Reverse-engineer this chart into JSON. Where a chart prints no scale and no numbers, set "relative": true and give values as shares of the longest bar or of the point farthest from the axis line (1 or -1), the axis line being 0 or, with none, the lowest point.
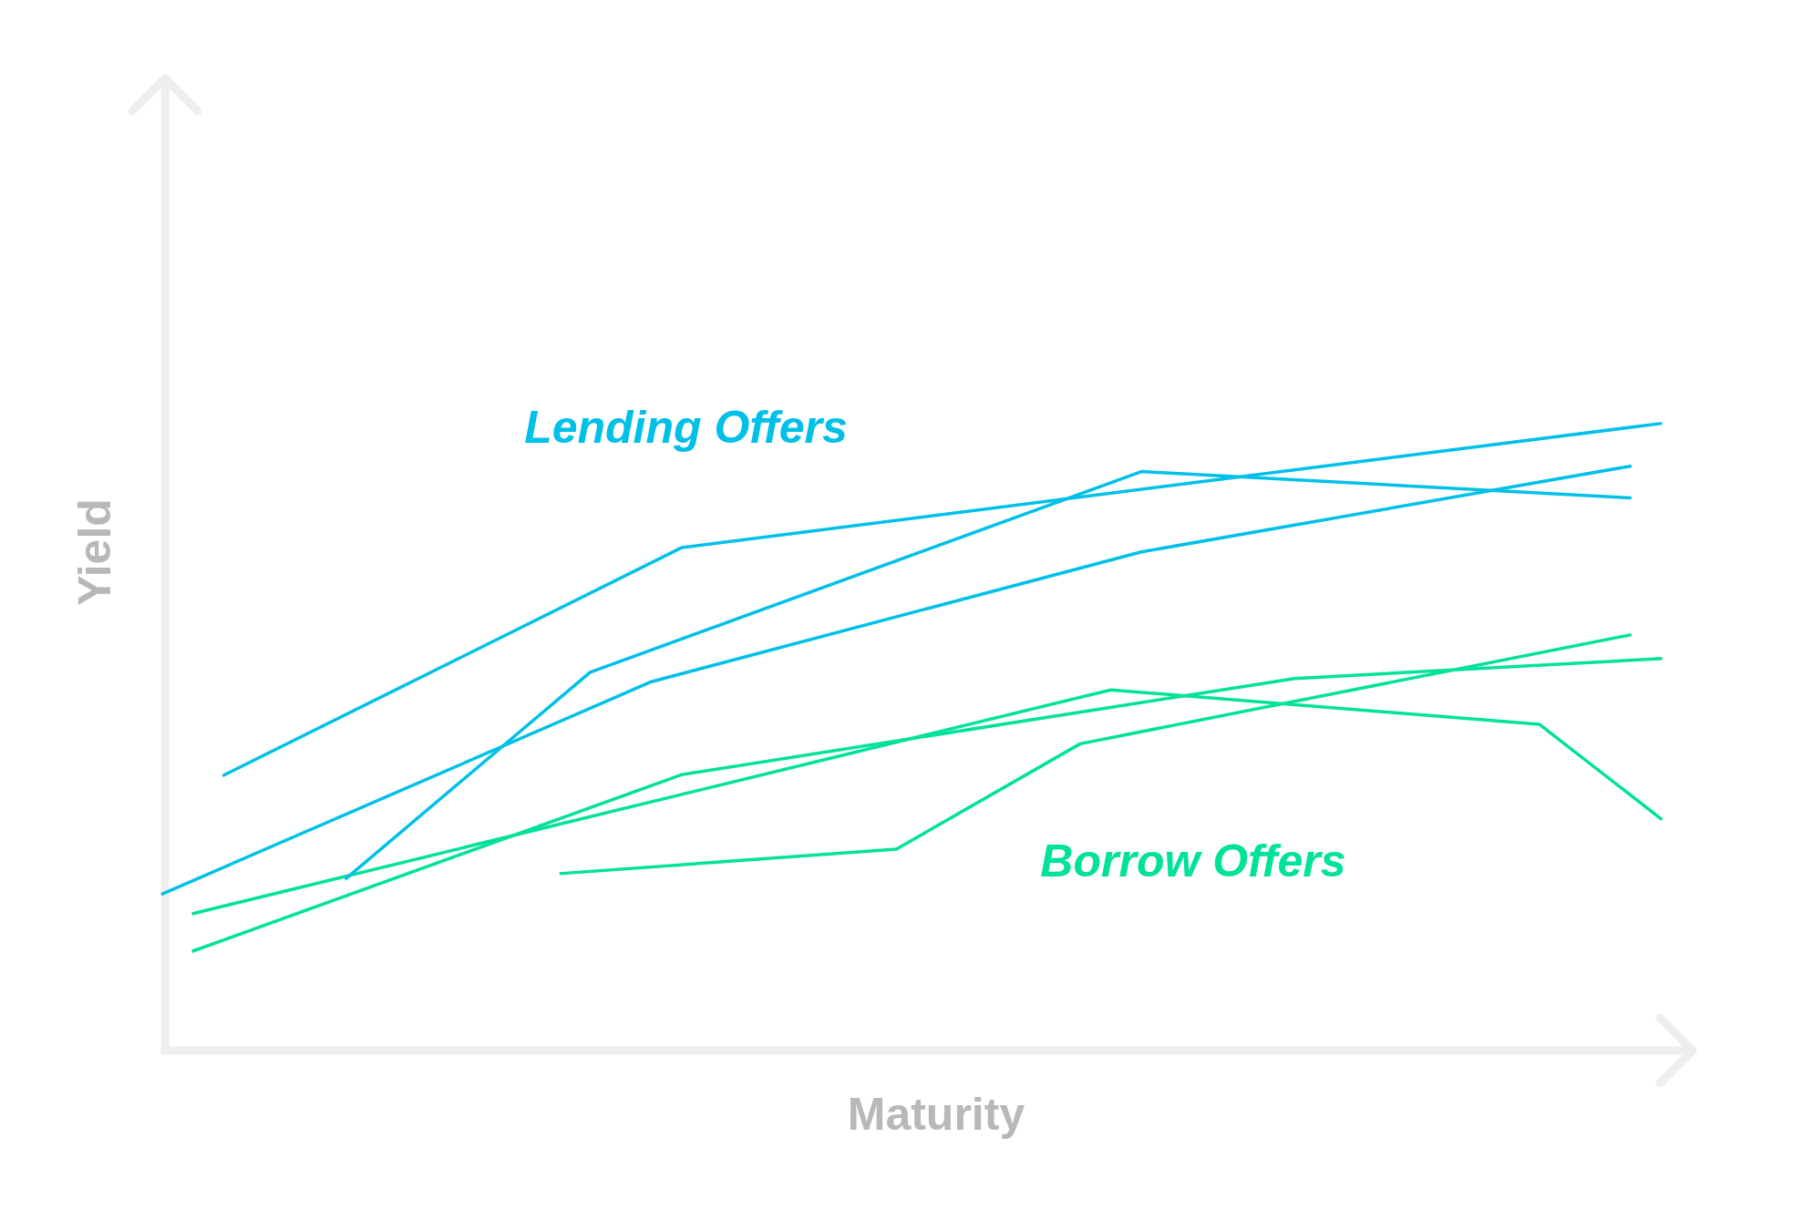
{
  "chart_data": {
    "type": "line",
    "relative": true,
    "xlabel": "Maturity",
    "ylabel": "Yield",
    "legend": false,
    "marker": "none",
    "line_style": "solid",
    "categories": [
      null,
      null,
      null,
      null,
      null,
      null,
      null,
      null,
      null,
      null,
      null,
      null,
      null,
      null,
      null,
      null,
      null,
      null,
      null,
      null,
      null,
      null,
      null,
      null,
      null,
      null,
      null,
      null,
      null,
      null,
      null,
      null,
      null,
      null,
      null,
      null,
      null,
      null,
      null,
      null,
      null,
      null,
      null,
      null,
      null,
      null,
      null,
      null,
      null,
      null,
      null
    ],
    "series": [
      {
        "color": "#00c0e8",
        "values": [
          null,
          null,
          0.438,
          null,
          null,
          null,
          null,
          null,
          null,
          null,
          null,
          null,
          null,
          null,
          null,
          null,
          null,
          0.802,
          null,
          null,
          null,
          null,
          null,
          null,
          null,
          null,
          null,
          null,
          null,
          null,
          null,
          null,
          null,
          null,
          null,
          null,
          null,
          null,
          null,
          null,
          null,
          null,
          null,
          null,
          null,
          null,
          null,
          null,
          null,
          1.0,
          null
        ]
      },
      {
        "color": "#00c0e8",
        "values": [
          null,
          null,
          null,
          null,
          null,
          null,
          0.273,
          null,
          null,
          null,
          null,
          null,
          null,
          null,
          0.603,
          null,
          null,
          null,
          null,
          null,
          null,
          null,
          null,
          null,
          null,
          null,
          null,
          null,
          null,
          null,
          null,
          null,
          0.923,
          null,
          null,
          null,
          null,
          null,
          null,
          null,
          null,
          null,
          null,
          null,
          null,
          null,
          null,
          null,
          0.881,
          null,
          null
        ]
      },
      {
        "color": "#00c0e8",
        "values": [
          0.249,
          null,
          null,
          null,
          null,
          null,
          null,
          null,
          null,
          null,
          null,
          null,
          null,
          null,
          null,
          null,
          0.588,
          null,
          null,
          null,
          null,
          null,
          null,
          null,
          null,
          null,
          null,
          null,
          null,
          null,
          null,
          null,
          0.795,
          null,
          null,
          null,
          null,
          null,
          null,
          null,
          null,
          null,
          null,
          null,
          null,
          null,
          null,
          null,
          0.932,
          null,
          null
        ]
      },
      {
        "color": "#00e19a",
        "values": [
          null,
          0.158,
          null,
          null,
          null,
          null,
          null,
          null,
          null,
          null,
          null,
          null,
          null,
          null,
          null,
          null,
          null,
          0.44,
          null,
          null,
          null,
          null,
          null,
          null,
          null,
          null,
          null,
          null,
          null,
          null,
          null,
          null,
          null,
          null,
          null,
          null,
          null,
          0.593,
          null,
          null,
          null,
          null,
          null,
          null,
          null,
          null,
          null,
          null,
          null,
          0.625,
          null
        ]
      },
      {
        "color": "#00e19a",
        "values": [
          null,
          0.218,
          null,
          null,
          null,
          null,
          null,
          null,
          null,
          null,
          null,
          null,
          null,
          null,
          null,
          null,
          null,
          null,
          null,
          null,
          null,
          null,
          null,
          null,
          null,
          null,
          null,
          null,
          null,
          null,
          null,
          0.575,
          null,
          null,
          null,
          null,
          null,
          null,
          null,
          null,
          null,
          null,
          null,
          null,
          null,
          0.52,
          null,
          null,
          null,
          0.368,
          null
        ]
      },
      {
        "color": "#00e19a",
        "values": [
          null,
          null,
          null,
          null,
          null,
          null,
          null,
          null,
          null,
          null,
          null,
          null,
          null,
          0.282,
          null,
          null,
          null,
          null,
          null,
          null,
          null,
          null,
          null,
          null,
          0.321,
          null,
          null,
          null,
          null,
          null,
          0.489,
          null,
          null,
          null,
          null,
          null,
          null,
          null,
          null,
          null,
          null,
          null,
          null,
          null,
          null,
          null,
          null,
          null,
          0.663,
          null,
          null
        ]
      }
    ],
    "annotations": [
      "Lending Offers",
      "Borrow Offers"
    ]
  }
}
